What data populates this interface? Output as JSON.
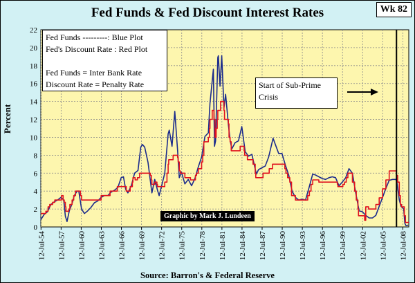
{
  "header": {
    "title": "Fed Funds & Fed Discount Interest Rates",
    "badge": "Wk 82"
  },
  "legend": {
    "lines": [
      "Fed Funds ---------: Blue Plot",
      "Fed's Discount Rate : Red Plot",
      "",
      "Fed Funds = Inter Bank Rate",
      "Discount Rate = Penalty Rate"
    ]
  },
  "annotation": {
    "text_line1": "Start of Sub-Prime",
    "text_line2": "Crisis",
    "marker_date": "2007-08-01"
  },
  "credit": "Graphic by Mark J. Lundeen",
  "source": "Source: Barron's & Federal Reserve",
  "colors": {
    "plot_background": "#fdf6ae",
    "outer_background": "#d2f1f4",
    "fed_funds": "#1b2b8c",
    "discount_rate": "#e0131f",
    "gridline": "#8a8a8a"
  },
  "chart_data": {
    "type": "line",
    "title": "Fed Funds & Fed Discount Interest Rates",
    "ylabel": "Percent",
    "xlabel": "",
    "ylim": [
      0,
      22
    ],
    "yticks": [
      0,
      2,
      4,
      6,
      8,
      10,
      12,
      14,
      16,
      18,
      20,
      22
    ],
    "xlim": [
      "1954-07-01",
      "2009-06-01"
    ],
    "xticks": [
      "12-Jul-54",
      "12-Jul-57",
      "12-Jul-60",
      "12-Jul-63",
      "12-Jul-66",
      "12-Jul-69",
      "12-Jul-72",
      "12-Jul-75",
      "12-Jul-78",
      "12-Jul-81",
      "12-Jul-84",
      "12-Jul-87",
      "12-Jul-90",
      "12-Jul-93",
      "12-Jul-96",
      "12-Jul-99",
      "12-Jul-02",
      "12-Jul-05",
      "12-Jul-08"
    ],
    "grid": true,
    "series": [
      {
        "name": "Fed Funds",
        "color": "#1b2b8c",
        "points": [
          [
            "1954-07-01",
            0.8
          ],
          [
            "1955-01-01",
            1.4
          ],
          [
            "1955-07-01",
            1.7
          ],
          [
            "1956-01-01",
            2.5
          ],
          [
            "1956-07-01",
            2.8
          ],
          [
            "1957-01-01",
            3.0
          ],
          [
            "1957-07-01",
            3.3
          ],
          [
            "1957-12-01",
            3.0
          ],
          [
            "1958-03-01",
            1.2
          ],
          [
            "1958-06-01",
            0.6
          ],
          [
            "1958-10-01",
            1.8
          ],
          [
            "1959-03-01",
            2.6
          ],
          [
            "1959-07-01",
            3.5
          ],
          [
            "1959-12-01",
            4.0
          ],
          [
            "1960-03-01",
            4.0
          ],
          [
            "1960-08-01",
            2.0
          ],
          [
            "1961-01-01",
            1.5
          ],
          [
            "1961-07-01",
            1.8
          ],
          [
            "1962-01-01",
            2.2
          ],
          [
            "1962-07-01",
            2.7
          ],
          [
            "1963-01-01",
            2.9
          ],
          [
            "1963-07-01",
            3.3
          ],
          [
            "1964-01-01",
            3.5
          ],
          [
            "1964-07-01",
            3.5
          ],
          [
            "1965-01-01",
            3.9
          ],
          [
            "1965-07-01",
            4.1
          ],
          [
            "1966-01-01",
            4.4
          ],
          [
            "1966-07-01",
            5.5
          ],
          [
            "1966-11-01",
            5.6
          ],
          [
            "1967-03-01",
            4.2
          ],
          [
            "1967-07-01",
            3.8
          ],
          [
            "1968-01-01",
            4.6
          ],
          [
            "1968-07-01",
            6.0
          ],
          [
            "1969-01-01",
            6.3
          ],
          [
            "1969-06-01",
            8.9
          ],
          [
            "1969-09-01",
            9.2
          ],
          [
            "1970-01-01",
            8.9
          ],
          [
            "1970-07-01",
            7.2
          ],
          [
            "1971-02-01",
            3.8
          ],
          [
            "1971-07-01",
            5.3
          ],
          [
            "1971-12-01",
            4.1
          ],
          [
            "1972-03-01",
            3.5
          ],
          [
            "1972-07-01",
            4.5
          ],
          [
            "1973-01-01",
            6.0
          ],
          [
            "1973-07-01",
            10.4
          ],
          [
            "1973-09-01",
            10.8
          ],
          [
            "1974-02-01",
            9.0
          ],
          [
            "1974-07-01",
            12.9
          ],
          [
            "1974-12-01",
            8.5
          ],
          [
            "1975-03-01",
            5.5
          ],
          [
            "1975-07-01",
            6.1
          ],
          [
            "1976-01-01",
            4.8
          ],
          [
            "1976-07-01",
            5.3
          ],
          [
            "1977-01-01",
            4.6
          ],
          [
            "1977-07-01",
            5.4
          ],
          [
            "1978-01-01",
            6.7
          ],
          [
            "1978-07-01",
            7.8
          ],
          [
            "1979-01-01",
            10.1
          ],
          [
            "1979-07-01",
            10.5
          ],
          [
            "1979-10-01",
            13.8
          ],
          [
            "1980-04-01",
            17.6
          ],
          [
            "1980-06-01",
            9.0
          ],
          [
            "1980-08-01",
            9.6
          ],
          [
            "1980-12-01",
            18.9
          ],
          [
            "1981-01-01",
            19.1
          ],
          [
            "1981-04-01",
            15.7
          ],
          [
            "1981-07-01",
            19.1
          ],
          [
            "1981-11-01",
            13.3
          ],
          [
            "1982-02-01",
            14.8
          ],
          [
            "1982-07-01",
            11.4
          ],
          [
            "1982-10-01",
            9.7
          ],
          [
            "1983-01-01",
            8.7
          ],
          [
            "1983-07-01",
            9.4
          ],
          [
            "1984-01-01",
            9.6
          ],
          [
            "1984-07-01",
            11.2
          ],
          [
            "1985-01-01",
            8.4
          ],
          [
            "1985-07-01",
            7.9
          ],
          [
            "1986-01-01",
            8.1
          ],
          [
            "1986-09-01",
            5.9
          ],
          [
            "1987-01-01",
            6.4
          ],
          [
            "1987-07-01",
            6.6
          ],
          [
            "1988-01-01",
            6.8
          ],
          [
            "1988-07-01",
            7.8
          ],
          [
            "1989-03-01",
            9.9
          ],
          [
            "1989-07-01",
            9.2
          ],
          [
            "1990-01-01",
            8.2
          ],
          [
            "1990-07-01",
            8.2
          ],
          [
            "1991-01-01",
            6.9
          ],
          [
            "1991-07-01",
            5.8
          ],
          [
            "1992-01-01",
            4.0
          ],
          [
            "1992-07-01",
            3.3
          ],
          [
            "1993-01-01",
            3.0
          ],
          [
            "1993-07-01",
            3.1
          ],
          [
            "1994-01-01",
            3.0
          ],
          [
            "1994-07-01",
            4.3
          ],
          [
            "1995-02-01",
            5.9
          ],
          [
            "1995-07-01",
            5.8
          ],
          [
            "1996-01-01",
            5.6
          ],
          [
            "1996-07-01",
            5.4
          ],
          [
            "1997-01-01",
            5.3
          ],
          [
            "1997-07-01",
            5.5
          ],
          [
            "1998-01-01",
            5.6
          ],
          [
            "1998-07-01",
            5.5
          ],
          [
            "1999-01-01",
            4.6
          ],
          [
            "1999-07-01",
            5.0
          ],
          [
            "2000-01-01",
            5.5
          ],
          [
            "2000-07-01",
            6.5
          ],
          [
            "2001-01-01",
            6.0
          ],
          [
            "2001-07-01",
            3.8
          ],
          [
            "2002-01-01",
            1.8
          ],
          [
            "2002-07-01",
            1.7
          ],
          [
            "2003-01-01",
            1.3
          ],
          [
            "2003-07-01",
            1.0
          ],
          [
            "2004-01-01",
            1.0
          ],
          [
            "2004-07-01",
            1.3
          ],
          [
            "2005-01-01",
            2.3
          ],
          [
            "2005-07-01",
            3.3
          ],
          [
            "2006-01-01",
            4.3
          ],
          [
            "2006-07-01",
            5.2
          ],
          [
            "2007-01-01",
            5.3
          ],
          [
            "2007-07-01",
            5.3
          ],
          [
            "2007-09-01",
            4.9
          ],
          [
            "2008-01-01",
            3.0
          ],
          [
            "2008-04-01",
            2.3
          ],
          [
            "2008-09-01",
            2.0
          ],
          [
            "2008-11-01",
            0.4
          ],
          [
            "2009-01-01",
            0.15
          ],
          [
            "2009-05-01",
            0.2
          ]
        ]
      },
      {
        "name": "Discount Rate",
        "color": "#e0131f",
        "points": [
          [
            "1954-07-01",
            1.5
          ],
          [
            "1955-04-01",
            1.75
          ],
          [
            "1955-08-01",
            2.25
          ],
          [
            "1955-11-01",
            2.5
          ],
          [
            "1956-04-01",
            2.75
          ],
          [
            "1956-08-01",
            3.0
          ],
          [
            "1957-08-01",
            3.5
          ],
          [
            "1957-11-01",
            3.0
          ],
          [
            "1958-01-01",
            2.75
          ],
          [
            "1958-03-01",
            2.25
          ],
          [
            "1958-04-01",
            1.75
          ],
          [
            "1958-09-01",
            2.0
          ],
          [
            "1958-11-01",
            2.5
          ],
          [
            "1959-03-01",
            3.0
          ],
          [
            "1959-06-01",
            3.5
          ],
          [
            "1959-09-01",
            4.0
          ],
          [
            "1960-06-01",
            3.5
          ],
          [
            "1960-08-01",
            3.0
          ],
          [
            "1963-07-01",
            3.5
          ],
          [
            "1964-11-01",
            4.0
          ],
          [
            "1965-12-01",
            4.5
          ],
          [
            "1967-04-01",
            4.0
          ],
          [
            "1967-11-01",
            4.5
          ],
          [
            "1968-03-01",
            5.0
          ],
          [
            "1968-04-01",
            5.5
          ],
          [
            "1968-08-01",
            5.25
          ],
          [
            "1968-12-01",
            5.5
          ],
          [
            "1969-04-01",
            6.0
          ],
          [
            "1970-11-01",
            5.75
          ],
          [
            "1971-01-01",
            5.25
          ],
          [
            "1971-02-01",
            4.75
          ],
          [
            "1971-07-01",
            5.0
          ],
          [
            "1971-11-01",
            4.75
          ],
          [
            "1971-12-01",
            4.5
          ],
          [
            "1973-01-01",
            5.0
          ],
          [
            "1973-05-01",
            6.0
          ],
          [
            "1973-07-01",
            7.0
          ],
          [
            "1973-08-01",
            7.5
          ],
          [
            "1974-04-01",
            8.0
          ],
          [
            "1974-12-01",
            7.75
          ],
          [
            "1975-01-01",
            7.25
          ],
          [
            "1975-03-01",
            6.25
          ],
          [
            "1975-05-01",
            6.0
          ],
          [
            "1976-01-01",
            5.5
          ],
          [
            "1976-11-01",
            5.25
          ],
          [
            "1977-08-01",
            5.75
          ],
          [
            "1977-10-01",
            6.0
          ],
          [
            "1978-01-01",
            6.5
          ],
          [
            "1978-07-01",
            7.25
          ],
          [
            "1978-09-01",
            8.0
          ],
          [
            "1978-11-01",
            9.5
          ],
          [
            "1979-07-01",
            10.0
          ],
          [
            "1979-09-01",
            11.0
          ],
          [
            "1979-10-01",
            12.0
          ],
          [
            "1980-02-01",
            13.0
          ],
          [
            "1980-05-01",
            12.0
          ],
          [
            "1980-07-01",
            10.0
          ],
          [
            "1980-09-01",
            11.0
          ],
          [
            "1980-11-01",
            12.0
          ],
          [
            "1980-12-01",
            13.0
          ],
          [
            "1981-05-01",
            14.0
          ],
          [
            "1981-11-01",
            13.0
          ],
          [
            "1981-12-01",
            12.0
          ],
          [
            "1982-07-01",
            11.5
          ],
          [
            "1982-08-01",
            10.0
          ],
          [
            "1982-10-01",
            9.5
          ],
          [
            "1982-12-01",
            8.5
          ],
          [
            "1984-04-01",
            9.0
          ],
          [
            "1984-11-01",
            8.5
          ],
          [
            "1984-12-01",
            8.0
          ],
          [
            "1985-05-01",
            7.5
          ],
          [
            "1986-03-01",
            7.0
          ],
          [
            "1986-07-01",
            6.0
          ],
          [
            "1986-08-01",
            5.5
          ],
          [
            "1987-09-01",
            6.0
          ],
          [
            "1988-08-01",
            6.5
          ],
          [
            "1989-02-01",
            7.0
          ],
          [
            "1990-12-01",
            6.5
          ],
          [
            "1991-02-01",
            6.0
          ],
          [
            "1991-05-01",
            5.5
          ],
          [
            "1991-09-01",
            5.0
          ],
          [
            "1991-12-01",
            3.5
          ],
          [
            "1992-07-01",
            3.0
          ],
          [
            "1994-05-01",
            3.5
          ],
          [
            "1994-08-01",
            4.0
          ],
          [
            "1994-11-01",
            4.75
          ],
          [
            "1995-02-01",
            5.25
          ],
          [
            "1996-01-01",
            5.0
          ],
          [
            "1998-10-01",
            4.75
          ],
          [
            "1998-11-01",
            4.5
          ],
          [
            "1999-08-01",
            4.75
          ],
          [
            "1999-11-01",
            5.0
          ],
          [
            "2000-02-01",
            5.5
          ],
          [
            "2000-05-01",
            6.0
          ],
          [
            "2001-01-01",
            5.0
          ],
          [
            "2001-05-01",
            4.0
          ],
          [
            "2001-08-01",
            3.0
          ],
          [
            "2001-11-01",
            2.0
          ],
          [
            "2001-12-01",
            1.25
          ],
          [
            "2002-11-01",
            0.75
          ],
          [
            "2003-01-01",
            2.25
          ],
          [
            "2003-06-01",
            2.0
          ],
          [
            "2004-07-01",
            2.5
          ],
          [
            "2005-01-01",
            3.25
          ],
          [
            "2005-07-01",
            4.25
          ],
          [
            "2006-01-01",
            5.25
          ],
          [
            "2006-07-01",
            6.25
          ],
          [
            "2007-08-01",
            5.75
          ],
          [
            "2007-10-01",
            5.0
          ],
          [
            "2008-01-01",
            3.5
          ],
          [
            "2008-03-01",
            2.5
          ],
          [
            "2008-05-01",
            2.25
          ],
          [
            "2008-10-01",
            1.25
          ],
          [
            "2008-12-01",
            0.5
          ],
          [
            "2009-05-01",
            0.5
          ]
        ]
      }
    ]
  }
}
